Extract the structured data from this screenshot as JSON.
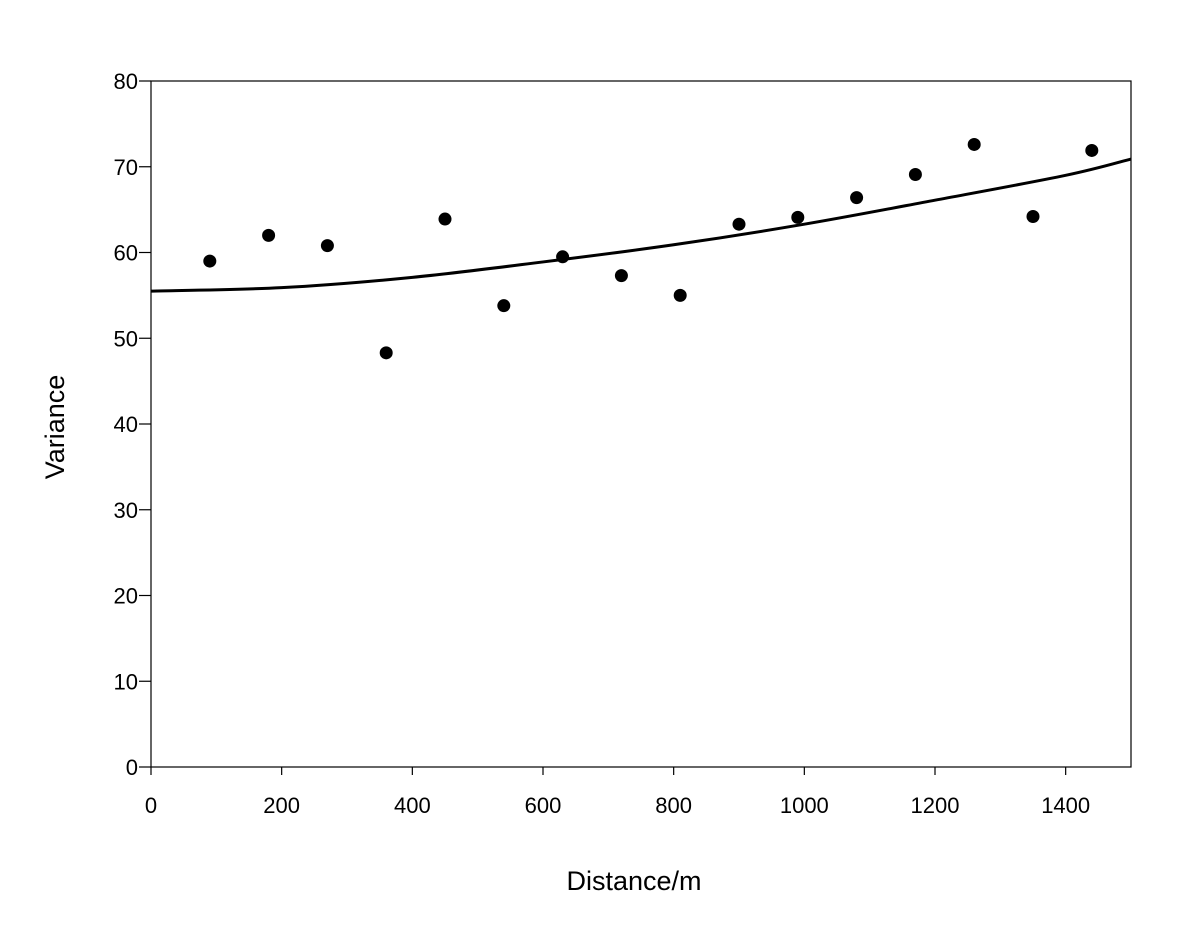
{
  "chart_data": {
    "type": "scatter",
    "title": "",
    "xlabel": "Distance/m",
    "ylabel": "Variance",
    "xlim": [
      0,
      1500
    ],
    "ylim": [
      0,
      80
    ],
    "x_ticks": [
      0,
      200,
      400,
      600,
      800,
      1000,
      1200,
      1400
    ],
    "y_ticks": [
      0,
      10,
      20,
      30,
      40,
      50,
      60,
      70,
      80
    ],
    "grid": false,
    "legend": "none",
    "series": [
      {
        "points": [
          {
            "x": 90,
            "y": 59.0
          },
          {
            "x": 180,
            "y": 62.0
          },
          {
            "x": 270,
            "y": 60.8
          },
          {
            "x": 360,
            "y": 48.3
          },
          {
            "x": 450,
            "y": 63.9
          },
          {
            "x": 540,
            "y": 53.8
          },
          {
            "x": 630,
            "y": 59.5
          },
          {
            "x": 720,
            "y": 57.3
          },
          {
            "x": 810,
            "y": 55.0
          },
          {
            "x": 900,
            "y": 63.3
          },
          {
            "x": 990,
            "y": 64.1
          },
          {
            "x": 1080,
            "y": 66.4
          },
          {
            "x": 1170,
            "y": 69.1
          },
          {
            "x": 1260,
            "y": 72.6
          },
          {
            "x": 1350,
            "y": 64.2
          },
          {
            "x": 1440,
            "y": 71.9
          }
        ],
        "color": "#000000"
      }
    ],
    "trendline": {
      "type": "polynomial",
      "points": [
        {
          "x": 0,
          "y": 55.5
        },
        {
          "x": 200,
          "y": 55.9
        },
        {
          "x": 400,
          "y": 57.1
        },
        {
          "x": 600,
          "y": 58.9
        },
        {
          "x": 800,
          "y": 60.9
        },
        {
          "x": 1000,
          "y": 63.3
        },
        {
          "x": 1200,
          "y": 66.1
        },
        {
          "x": 1400,
          "y": 69.0
        },
        {
          "x": 1500,
          "y": 70.9
        }
      ],
      "color": "#000000"
    }
  }
}
